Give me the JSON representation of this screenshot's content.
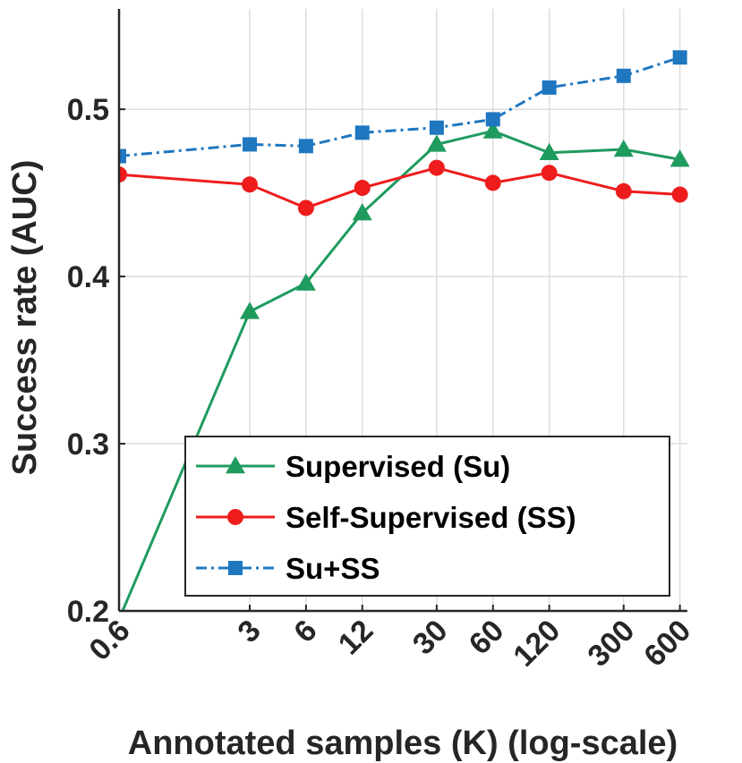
{
  "chart_data": {
    "type": "line",
    "title": "",
    "xlabel": "Annotated samples (K) (log-scale)",
    "ylabel": "Success rate (AUC)",
    "xscale": "log",
    "x": [
      0.6,
      3,
      6,
      12,
      30,
      60,
      120,
      300,
      600
    ],
    "x_tick_labels": [
      "0.6",
      "3",
      "6",
      "12",
      "30",
      "60",
      "120",
      "300",
      "600"
    ],
    "yticks": [
      0.2,
      0.3,
      0.4,
      0.5
    ],
    "y_tick_labels": [
      "0.2",
      "0.3",
      "0.4",
      "0.5"
    ],
    "ylim": [
      0.2,
      0.56
    ],
    "grid": true,
    "legend_position": "bottom-right",
    "series": [
      {
        "name": "Supervised (Su)",
        "color": "#1f9b5e",
        "marker": "triangle",
        "linestyle": "solid",
        "values": [
          0.195,
          0.379,
          0.396,
          0.438,
          0.479,
          0.487,
          0.474,
          0.476,
          0.47
        ]
      },
      {
        "name": "Self-Supervised (SS)",
        "color": "#ee1c1c",
        "marker": "circle",
        "linestyle": "solid",
        "values": [
          0.461,
          0.455,
          0.441,
          0.453,
          0.465,
          0.456,
          0.462,
          0.451,
          0.449
        ]
      },
      {
        "name": "Su+SS",
        "color": "#1f77c0",
        "marker": "square",
        "linestyle": "dashdot",
        "values": [
          0.472,
          0.479,
          0.478,
          0.486,
          0.489,
          0.494,
          0.513,
          0.52,
          0.531
        ]
      }
    ]
  }
}
